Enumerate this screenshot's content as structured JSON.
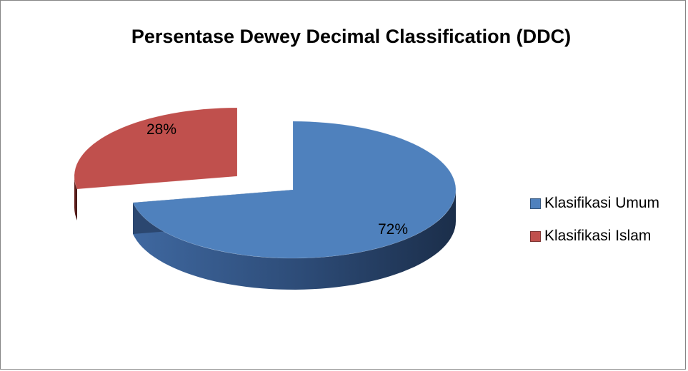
{
  "chart_data": {
    "type": "pie",
    "title": "Persentase Dewey Decimal Classification (DDC)",
    "series": [
      {
        "name": "",
        "categories": [
          "Klasifikasi Umum",
          "Klasifikasi Islam"
        ],
        "values": [
          72,
          28
        ],
        "data_labels": [
          "72%",
          "28%"
        ],
        "colors": [
          "#4f81bd",
          "#c0504d"
        ]
      }
    ],
    "style": "3d-exploded",
    "legend_position": "right"
  }
}
